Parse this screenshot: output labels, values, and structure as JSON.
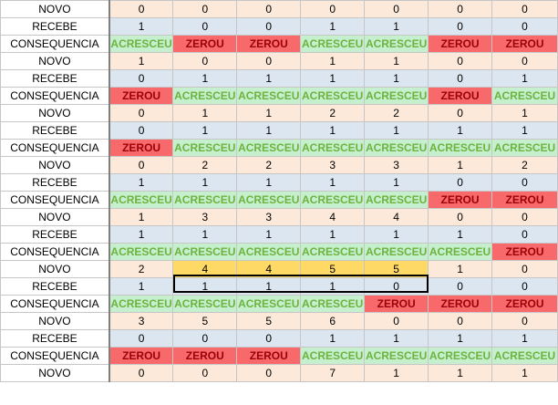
{
  "colors": {
    "novo_bg": "#fde9d9",
    "recebe_bg": "#dce6f1",
    "acresceu_bg": "#c6efce",
    "acresceu_text": "#6db33f",
    "zerou_bg": "#f8696b",
    "zerou_text": "#9c0006",
    "highlight_bg": "#ffd966"
  },
  "rows": [
    {
      "label": "NOVO",
      "type": "novo",
      "values": [
        "0",
        "0",
        "0",
        "0",
        "0",
        "0",
        "0"
      ]
    },
    {
      "label": "RECEBE",
      "type": "recebe",
      "values": [
        "1",
        "0",
        "0",
        "1",
        "1",
        "0",
        "0"
      ]
    },
    {
      "label": "CONSEQUENCIA",
      "type": "cons",
      "values": [
        "ACRESCEU",
        "ZEROU",
        "ZEROU",
        "ACRESCEU",
        "ACRESCEU",
        "ZEROU",
        "ZEROU"
      ]
    },
    {
      "label": "NOVO",
      "type": "novo",
      "values": [
        "1",
        "0",
        "0",
        "1",
        "1",
        "0",
        "0"
      ]
    },
    {
      "label": "RECEBE",
      "type": "recebe",
      "values": [
        "0",
        "1",
        "1",
        "1",
        "1",
        "0",
        "1"
      ]
    },
    {
      "label": "CONSEQUENCIA",
      "type": "cons",
      "values": [
        "ZEROU",
        "ACRESCEU",
        "ACRESCEU",
        "ACRESCEU",
        "ACRESCEU",
        "ZEROU",
        "ACRESCEU"
      ]
    },
    {
      "label": "NOVO",
      "type": "novo",
      "values": [
        "0",
        "1",
        "1",
        "2",
        "2",
        "0",
        "1"
      ]
    },
    {
      "label": "RECEBE",
      "type": "recebe",
      "values": [
        "0",
        "1",
        "1",
        "1",
        "1",
        "1",
        "1"
      ]
    },
    {
      "label": "CONSEQUENCIA",
      "type": "cons",
      "values": [
        "ZEROU",
        "ACRESCEU",
        "ACRESCEU",
        "ACRESCEU",
        "ACRESCEU",
        "ACRESCEU",
        "ACRESCEU"
      ]
    },
    {
      "label": "NOVO",
      "type": "novo",
      "values": [
        "0",
        "2",
        "2",
        "3",
        "3",
        "1",
        "2"
      ]
    },
    {
      "label": "RECEBE",
      "type": "recebe",
      "values": [
        "1",
        "1",
        "1",
        "1",
        "1",
        "0",
        "0"
      ]
    },
    {
      "label": "CONSEQUENCIA",
      "type": "cons",
      "values": [
        "ACRESCEU",
        "ACRESCEU",
        "ACRESCEU",
        "ACRESCEU",
        "ACRESCEU",
        "ZEROU",
        "ZEROU"
      ]
    },
    {
      "label": "NOVO",
      "type": "novo",
      "values": [
        "1",
        "3",
        "3",
        "4",
        "4",
        "0",
        "0"
      ]
    },
    {
      "label": "RECEBE",
      "type": "recebe",
      "values": [
        "1",
        "1",
        "1",
        "1",
        "1",
        "1",
        "0"
      ]
    },
    {
      "label": "CONSEQUENCIA",
      "type": "cons",
      "values": [
        "ACRESCEU",
        "ACRESCEU",
        "ACRESCEU",
        "ACRESCEU",
        "ACRESCEU",
        "ACRESCEU",
        "ZEROU"
      ]
    },
    {
      "label": "NOVO",
      "type": "novo",
      "highlight_cols": [
        1,
        2,
        3,
        4
      ],
      "values": [
        "2",
        "4",
        "4",
        "5",
        "5",
        "1",
        "0"
      ]
    },
    {
      "label": "RECEBE",
      "type": "recebe",
      "values": [
        "1",
        "1",
        "1",
        "1",
        "0",
        "0",
        "0"
      ]
    },
    {
      "label": "CONSEQUENCIA",
      "type": "cons",
      "values": [
        "ACRESCEU",
        "ACRESCEU",
        "ACRESCEU",
        "ACRESCEU",
        "ZEROU",
        "ZEROU",
        "ZEROU"
      ]
    },
    {
      "label": "NOVO",
      "type": "novo",
      "values": [
        "3",
        "5",
        "5",
        "6",
        "0",
        "0",
        "0"
      ]
    },
    {
      "label": "RECEBE",
      "type": "recebe",
      "values": [
        "0",
        "0",
        "0",
        "1",
        "1",
        "1",
        "1"
      ]
    },
    {
      "label": "CONSEQUENCIA",
      "type": "cons",
      "values": [
        "ZEROU",
        "ZEROU",
        "ZEROU",
        "ACRESCEU",
        "ACRESCEU",
        "ACRESCEU",
        "ACRESCEU"
      ]
    },
    {
      "label": "NOVO",
      "type": "novo",
      "values": [
        "0",
        "0",
        "0",
        "7",
        "1",
        "1",
        "1"
      ]
    }
  ]
}
